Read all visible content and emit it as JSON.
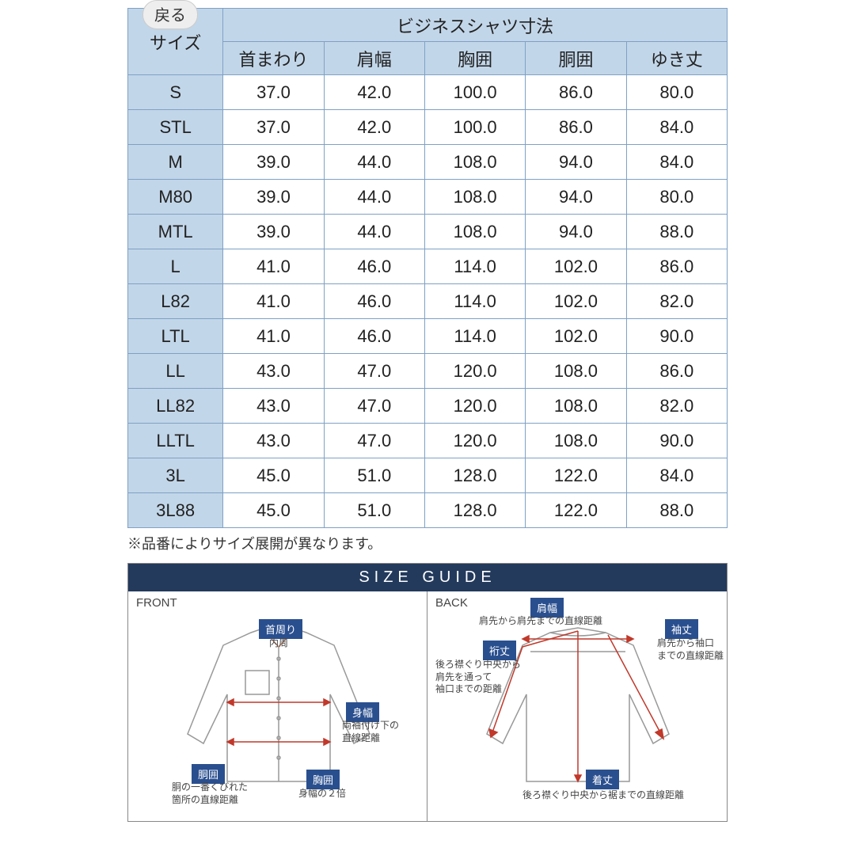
{
  "back_label": "戻る",
  "table": {
    "title": "ビジネスシャツ寸法",
    "size_label": "サイズ",
    "columns": [
      "首まわり",
      "肩幅",
      "胸囲",
      "胴囲",
      "ゆき丈"
    ],
    "rows": [
      {
        "label": "S",
        "vals": [
          "37.0",
          "42.0",
          "100.0",
          "86.0",
          "80.0"
        ]
      },
      {
        "label": "STL",
        "vals": [
          "37.0",
          "42.0",
          "100.0",
          "86.0",
          "84.0"
        ]
      },
      {
        "label": "M",
        "vals": [
          "39.0",
          "44.0",
          "108.0",
          "94.0",
          "84.0"
        ]
      },
      {
        "label": "M80",
        "vals": [
          "39.0",
          "44.0",
          "108.0",
          "94.0",
          "80.0"
        ]
      },
      {
        "label": "MTL",
        "vals": [
          "39.0",
          "44.0",
          "108.0",
          "94.0",
          "88.0"
        ]
      },
      {
        "label": "L",
        "vals": [
          "41.0",
          "46.0",
          "114.0",
          "102.0",
          "86.0"
        ]
      },
      {
        "label": "L82",
        "vals": [
          "41.0",
          "46.0",
          "114.0",
          "102.0",
          "82.0"
        ]
      },
      {
        "label": "LTL",
        "vals": [
          "41.0",
          "46.0",
          "114.0",
          "102.0",
          "90.0"
        ]
      },
      {
        "label": "LL",
        "vals": [
          "43.0",
          "47.0",
          "120.0",
          "108.0",
          "86.0"
        ]
      },
      {
        "label": "LL82",
        "vals": [
          "43.0",
          "47.0",
          "120.0",
          "108.0",
          "82.0"
        ]
      },
      {
        "label": "LLTL",
        "vals": [
          "43.0",
          "47.0",
          "120.0",
          "108.0",
          "90.0"
        ]
      },
      {
        "label": "3L",
        "vals": [
          "45.0",
          "51.0",
          "128.0",
          "122.0",
          "84.0"
        ]
      },
      {
        "label": "3L88",
        "vals": [
          "45.0",
          "51.0",
          "128.0",
          "122.0",
          "88.0"
        ]
      }
    ],
    "header_bg": "#c2d6e9",
    "border_color": "#7fa1c5",
    "font_size": 22
  },
  "note": "※品番によりサイズ展開が異なります。",
  "guide": {
    "header": "SIZE GUIDE",
    "header_bg": "#233a5c",
    "badge_bg": "#2a4f8f",
    "front": {
      "title": "FRONT",
      "badges": {
        "neck": {
          "text": "首周り",
          "desc": "内周"
        },
        "waist": {
          "text": "胴囲",
          "desc": "胴の一番くびれた\n箇所の直線距離"
        },
        "chest": {
          "text": "胸囲",
          "desc": "身幅の２倍"
        },
        "width": {
          "text": "身幅",
          "desc": "両袖付け下の\n直線距離"
        }
      }
    },
    "back": {
      "title": "BACK",
      "badges": {
        "shoulder": {
          "text": "肩幅",
          "desc": "肩先から肩先までの直線距離"
        },
        "sleeve": {
          "text": "袖丈",
          "desc": "肩先から袖口\nまでの直線距離"
        },
        "yuki": {
          "text": "裄丈",
          "desc": "後ろ襟ぐり中央から\n肩先を通って\n袖口までの距離"
        },
        "length": {
          "text": "着丈",
          "desc": "後ろ襟ぐり中央から裾までの直線距離"
        }
      }
    },
    "shirt_stroke": "#999999",
    "arrow_color": "#c0392b"
  }
}
